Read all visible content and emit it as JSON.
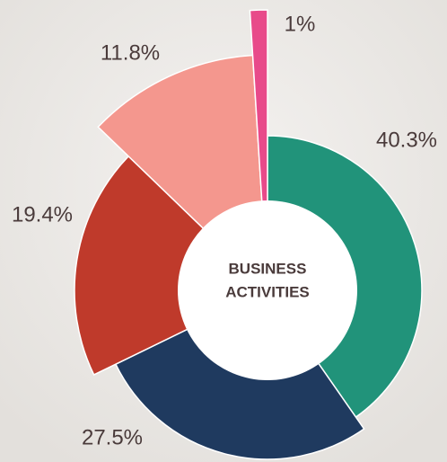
{
  "chart_data": {
    "type": "rose-donut",
    "title": [
      "BUSINESS",
      "ACTIVITIES"
    ],
    "series": [
      {
        "name": null,
        "values": [
          40.3,
          27.5,
          19.4,
          11.8,
          1
        ],
        "value_labels": [
          "40.3%",
          "27.5%",
          "19.4%",
          "11.8%",
          "1%"
        ],
        "colors": [
          "#21937a",
          "#1f3a5f",
          "#bf3a2b",
          "#f4978e",
          "#e84a8a"
        ]
      }
    ]
  }
}
